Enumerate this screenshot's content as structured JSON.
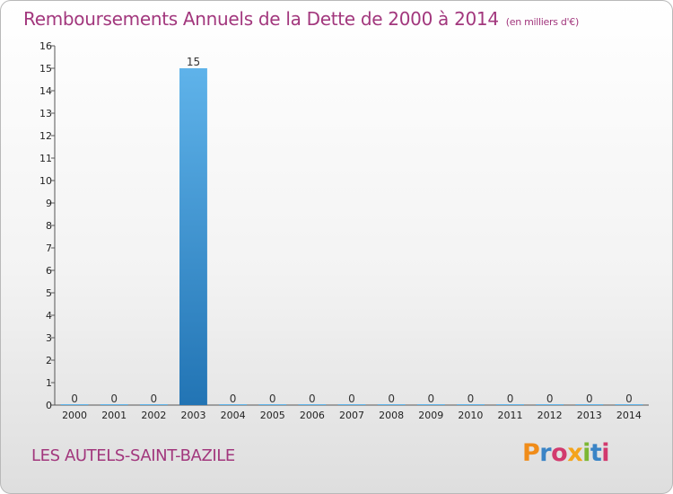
{
  "header": {
    "title": "Remboursements Annuels de la Dette de 2000 à 2014",
    "unit": "(en milliers d'€)"
  },
  "footer": {
    "place": "LES AUTELS-SAINT-BAZILE"
  },
  "logo": {
    "p": "P",
    "r": "r",
    "o": "o",
    "x": "x",
    "i": "i",
    "t": "t",
    "i2": "i"
  },
  "colors": {
    "title": "#a2377d",
    "bar_top": "#5fb3ea",
    "bar_bottom": "#2274b4"
  },
  "chart_data": {
    "type": "bar",
    "title": "Remboursements Annuels de la Dette de 2000 à 2014",
    "subtitle": "(en milliers d'€)",
    "xlabel": "",
    "ylabel": "",
    "categories": [
      "2000",
      "2001",
      "2002",
      "2003",
      "2004",
      "2005",
      "2006",
      "2007",
      "2008",
      "2009",
      "2010",
      "2011",
      "2012",
      "2013",
      "2014"
    ],
    "values": [
      0,
      0,
      0,
      15,
      0,
      0,
      0,
      0,
      0,
      0,
      0,
      0,
      0,
      0,
      0
    ],
    "ylim": [
      0,
      16
    ],
    "yticks": [
      0,
      1,
      2,
      3,
      4,
      5,
      6,
      7,
      8,
      9,
      10,
      11,
      12,
      13,
      14,
      15,
      16
    ],
    "grid": false,
    "legend": "none"
  }
}
